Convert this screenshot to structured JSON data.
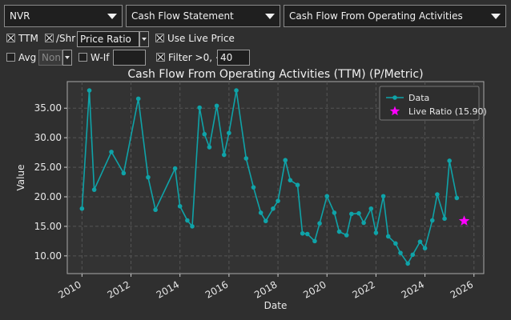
{
  "toolbar": {
    "ticker": "NVR",
    "statement": "Cash Flow Statement",
    "metric": "Cash Flow From Operating Activities"
  },
  "options": {
    "ttm": {
      "label": "TTM",
      "checked": true
    },
    "per_share": {
      "label": "/Shr",
      "checked": true
    },
    "mode": "Price Ratio",
    "use_live_price": {
      "label": "Use Live Price",
      "checked": true
    },
    "avg": {
      "label": "Avg",
      "checked": false,
      "value": "Non"
    },
    "what_if": {
      "label": "W-If",
      "checked": false,
      "value": ""
    },
    "filter": {
      "label": "Filter >0, <",
      "checked": true,
      "value": "40"
    }
  },
  "chart_data": {
    "type": "line",
    "title": "Cash Flow From Operating Activities (TTM) (P/Metric)",
    "xlabel": "Date",
    "ylabel": "Value",
    "xlim": [
      2009.4,
      2026.4
    ],
    "ylim": [
      7.0,
      39.5
    ],
    "x_ticks": [
      "2010",
      "2012",
      "2014",
      "2016",
      "2018",
      "2020",
      "2022",
      "2024",
      "2026"
    ],
    "y_ticks": [
      "10.00",
      "15.00",
      "20.00",
      "25.00",
      "30.00",
      "35.00"
    ],
    "grid": true,
    "legend_position": "top-right",
    "colors": {
      "data": "#0fa3a8",
      "live": "#ff00ff",
      "plot_bg": "#333333",
      "grid": "#555555"
    },
    "series": [
      {
        "name": "Data",
        "x": [
          2010.0,
          2010.3,
          2010.5,
          2011.2,
          2011.7,
          2012.3,
          2012.7,
          2013.0,
          2013.8,
          2014.0,
          2014.3,
          2014.5,
          2014.8,
          2015.0,
          2015.2,
          2015.5,
          2015.8,
          2016.0,
          2016.3,
          2016.7,
          2017.0,
          2017.3,
          2017.5,
          2017.8,
          2018.0,
          2018.3,
          2018.5,
          2018.8,
          2019.0,
          2019.2,
          2019.5,
          2019.7,
          2020.0,
          2020.3,
          2020.5,
          2020.8,
          2021.0,
          2021.3,
          2021.5,
          2021.8,
          2022.0,
          2022.3,
          2022.5,
          2022.8,
          2023.0,
          2023.3,
          2023.5,
          2023.8,
          2024.0,
          2024.3,
          2024.5,
          2024.8,
          2025.0,
          2025.3
        ],
        "y": [
          18.0,
          38.0,
          21.2,
          27.6,
          24.0,
          36.6,
          23.3,
          17.8,
          24.8,
          18.4,
          16.0,
          15.0,
          35.1,
          30.6,
          28.4,
          35.4,
          27.1,
          30.8,
          38.0,
          26.5,
          21.6,
          17.3,
          15.9,
          18.0,
          19.3,
          26.2,
          22.8,
          22.0,
          13.8,
          13.7,
          12.5,
          15.5,
          20.1,
          17.3,
          14.1,
          13.5,
          17.1,
          17.2,
          15.6,
          18.0,
          13.9,
          20.1,
          13.3,
          12.1,
          10.5,
          8.7,
          10.2,
          12.4,
          11.3,
          16.0,
          20.4,
          16.3,
          26.1,
          19.8
        ]
      },
      {
        "name": "Live Ratio (15.90)",
        "x": [
          2025.6
        ],
        "y": [
          15.9
        ]
      }
    ]
  }
}
